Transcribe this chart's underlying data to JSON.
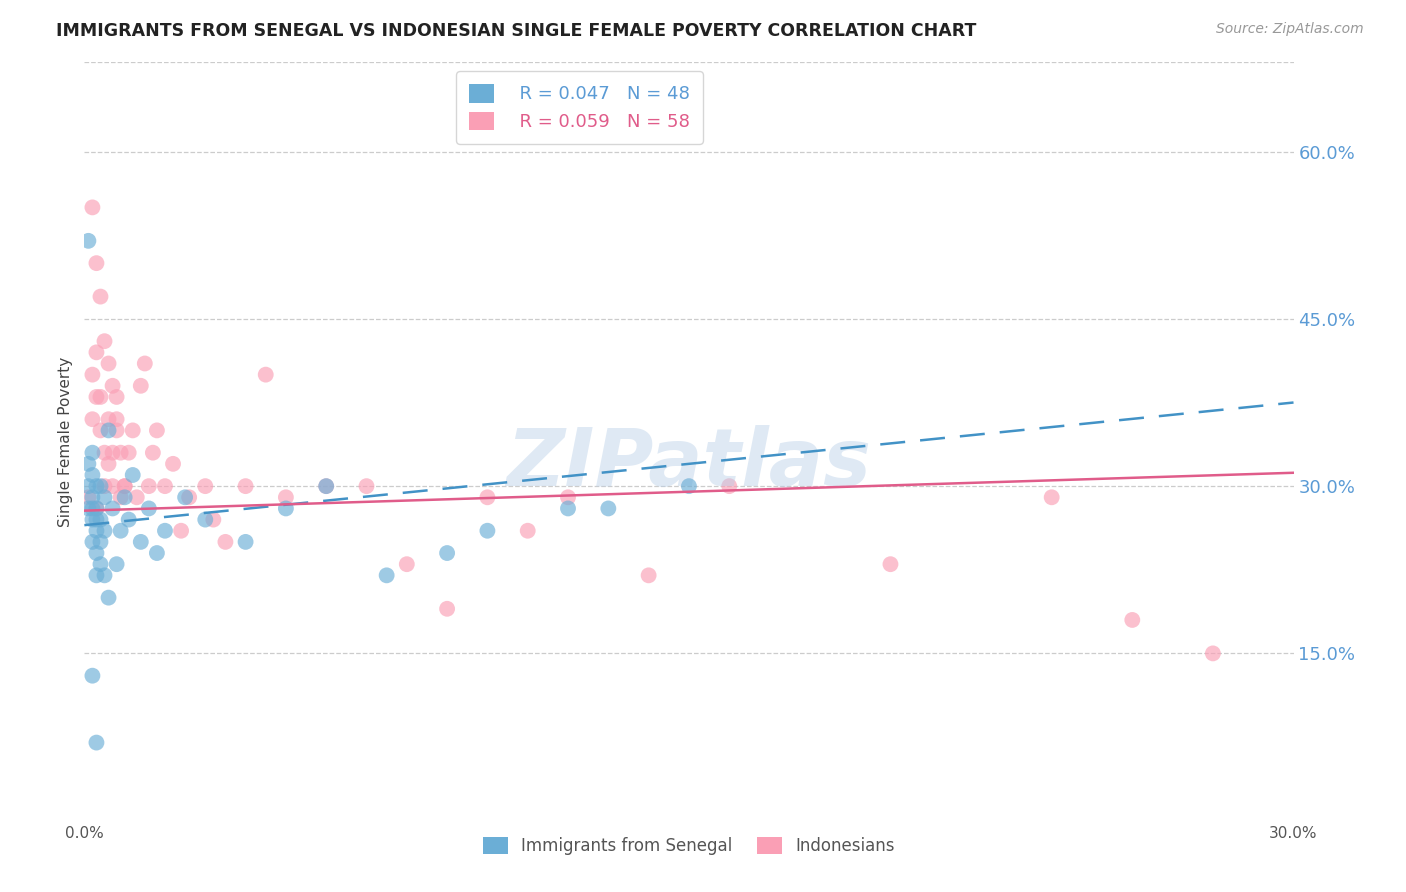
{
  "title": "IMMIGRANTS FROM SENEGAL VS INDONESIAN SINGLE FEMALE POVERTY CORRELATION CHART",
  "source": "Source: ZipAtlas.com",
  "ylabel": "Single Female Poverty",
  "right_yticks": [
    "60.0%",
    "45.0%",
    "30.0%",
    "15.0%"
  ],
  "right_ytick_vals": [
    0.6,
    0.45,
    0.3,
    0.15
  ],
  "xlim": [
    0.0,
    0.3
  ],
  "ylim": [
    0.0,
    0.68
  ],
  "blue_color": "#6baed6",
  "pink_color": "#fa9fb5",
  "blue_line_color": "#4292c6",
  "pink_line_color": "#e05c8a",
  "watermark": "ZIPatlas",
  "senegal_x": [
    0.001,
    0.001,
    0.001,
    0.001,
    0.002,
    0.002,
    0.002,
    0.002,
    0.002,
    0.002,
    0.003,
    0.003,
    0.003,
    0.003,
    0.003,
    0.003,
    0.004,
    0.004,
    0.004,
    0.004,
    0.005,
    0.005,
    0.005,
    0.006,
    0.006,
    0.007,
    0.008,
    0.009,
    0.01,
    0.011,
    0.012,
    0.014,
    0.016,
    0.018,
    0.02,
    0.025,
    0.03,
    0.04,
    0.05,
    0.06,
    0.075,
    0.09,
    0.1,
    0.12,
    0.15,
    0.002,
    0.003,
    0.13
  ],
  "senegal_y": [
    0.32,
    0.3,
    0.28,
    0.52,
    0.27,
    0.29,
    0.25,
    0.31,
    0.28,
    0.33,
    0.24,
    0.26,
    0.28,
    0.3,
    0.22,
    0.27,
    0.23,
    0.25,
    0.27,
    0.3,
    0.22,
    0.26,
    0.29,
    0.2,
    0.35,
    0.28,
    0.23,
    0.26,
    0.29,
    0.27,
    0.31,
    0.25,
    0.28,
    0.24,
    0.26,
    0.29,
    0.27,
    0.25,
    0.28,
    0.3,
    0.22,
    0.24,
    0.26,
    0.28,
    0.3,
    0.13,
    0.07,
    0.28
  ],
  "indonesian_x": [
    0.001,
    0.002,
    0.002,
    0.003,
    0.003,
    0.003,
    0.004,
    0.004,
    0.005,
    0.005,
    0.006,
    0.006,
    0.007,
    0.007,
    0.008,
    0.008,
    0.009,
    0.01,
    0.011,
    0.012,
    0.013,
    0.014,
    0.015,
    0.016,
    0.017,
    0.018,
    0.02,
    0.022,
    0.024,
    0.026,
    0.03,
    0.032,
    0.035,
    0.04,
    0.045,
    0.05,
    0.06,
    0.07,
    0.08,
    0.09,
    0.1,
    0.11,
    0.12,
    0.14,
    0.16,
    0.2,
    0.24,
    0.26,
    0.28,
    0.002,
    0.003,
    0.004,
    0.005,
    0.006,
    0.007,
    0.008,
    0.009,
    0.01
  ],
  "indonesian_y": [
    0.29,
    0.36,
    0.4,
    0.38,
    0.42,
    0.28,
    0.35,
    0.38,
    0.3,
    0.33,
    0.32,
    0.36,
    0.3,
    0.33,
    0.35,
    0.38,
    0.29,
    0.3,
    0.33,
    0.35,
    0.29,
    0.39,
    0.41,
    0.3,
    0.33,
    0.35,
    0.3,
    0.32,
    0.26,
    0.29,
    0.3,
    0.27,
    0.25,
    0.3,
    0.4,
    0.29,
    0.3,
    0.3,
    0.23,
    0.19,
    0.29,
    0.26,
    0.29,
    0.22,
    0.3,
    0.23,
    0.29,
    0.18,
    0.15,
    0.55,
    0.5,
    0.47,
    0.43,
    0.41,
    0.39,
    0.36,
    0.33,
    0.3
  ],
  "blue_line_x": [
    0.0,
    0.3
  ],
  "blue_line_y": [
    0.265,
    0.375
  ],
  "pink_line_x": [
    0.0,
    0.3
  ],
  "pink_line_y": [
    0.278,
    0.312
  ]
}
